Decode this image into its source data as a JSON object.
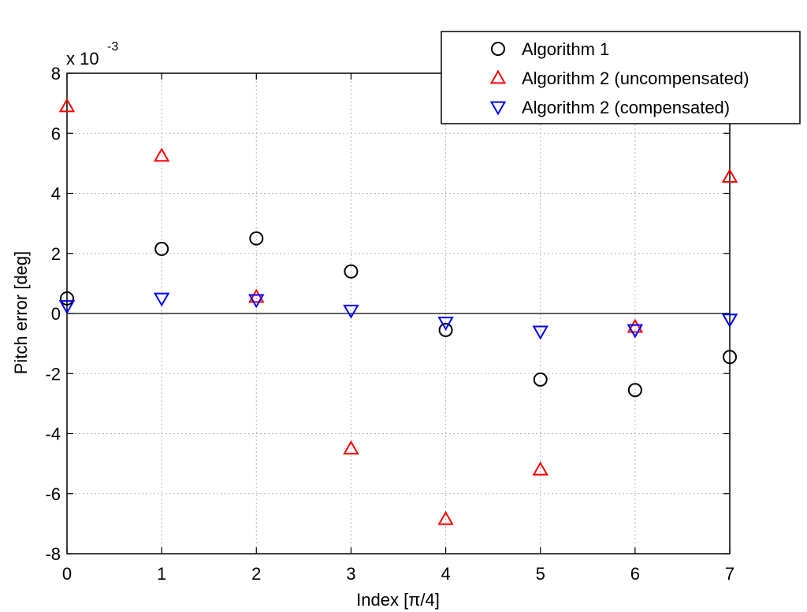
{
  "chart_data": {
    "type": "scatter",
    "title": "",
    "xlabel": "Index [π/4]",
    "ylabel": "Pitch error [deg]",
    "y_scale_label": "x 10",
    "y_scale_exponent": "-3",
    "xlim": [
      0,
      7
    ],
    "ylim": [
      -8,
      8
    ],
    "xticks": [
      "0",
      "1",
      "2",
      "3",
      "4",
      "5",
      "6",
      "7"
    ],
    "yticks": [
      "-8",
      "-6",
      "-4",
      "-2",
      "0",
      "2",
      "4",
      "6",
      "8"
    ],
    "grid": true,
    "legend_position": "top-right",
    "x": [
      0,
      1,
      2,
      3,
      4,
      5,
      6,
      7
    ],
    "series": [
      {
        "name": "Algorithm 1",
        "marker": "circle",
        "color": "#000000",
        "values": [
          0.5,
          2.15,
          2.5,
          1.4,
          -0.55,
          -2.2,
          -2.55,
          -1.45
        ]
      },
      {
        "name": "Algorithm 2 (uncompensated)",
        "marker": "triangle-up",
        "color": "#ff0000",
        "values": [
          6.9,
          5.25,
          0.55,
          -4.5,
          -6.85,
          -5.2,
          -0.45,
          4.55
        ]
      },
      {
        "name": "Algorithm 2 (compensated)",
        "marker": "triangle-down",
        "color": "#0000ff",
        "values": [
          0.25,
          0.5,
          0.45,
          0.1,
          -0.3,
          -0.6,
          -0.55,
          -0.2
        ]
      }
    ]
  }
}
